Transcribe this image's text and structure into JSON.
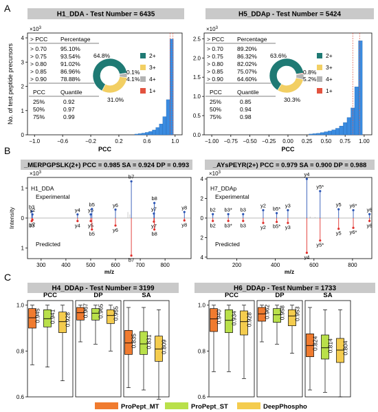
{
  "panel_labels": [
    "A",
    "B",
    "C"
  ],
  "legend": {
    "items": [
      {
        "name": "ProPept_MT",
        "color": "#f07b2f"
      },
      {
        "name": "ProPept_ST",
        "color": "#b9e04a"
      },
      {
        "name": "DeepPhospho",
        "color": "#f4cc4e"
      }
    ]
  },
  "colors": {
    "teal": "#1f7a74",
    "yellow": "#f2cf63",
    "gray": "#b3b3b3",
    "red": "#e2533f",
    "blue": "#3a8be0",
    "strip": "#c9c9c9",
    "stem_blue": "#2b55b5",
    "stem_red": "#e0302c"
  },
  "chart_data": [
    {
      "type": "bar",
      "id": "A-left",
      "title": "H1_DDA - Test Number = 6435",
      "xlabel": "PCC",
      "ylabel": "No. of test peptide precursors",
      "multiplier": "×10",
      "multiplier_exp": "3",
      "xlim": [
        -1.1,
        1.1
      ],
      "ylim": [
        0,
        4.2
      ],
      "xticks": [
        -1.0,
        -0.6,
        -0.2,
        0.2,
        0.6,
        1.0
      ],
      "xtick_labels": [
        "−1.0",
        "−0.6",
        "−0.2",
        "0.2",
        "0.6",
        "1.0"
      ],
      "yticks": [
        0,
        1,
        2,
        3,
        4
      ],
      "bins_x": [
        0.45,
        0.5,
        0.55,
        0.6,
        0.65,
        0.7,
        0.75,
        0.8,
        0.85,
        0.9,
        0.95
      ],
      "bins_h": [
        0.03,
        0.05,
        0.07,
        0.1,
        0.14,
        0.2,
        0.3,
        0.45,
        0.75,
        1.45,
        3.95
      ],
      "bin_width": 0.05,
      "vlines": [
        0.93,
        0.97
      ],
      "pct_table": {
        "headers": [
          "> PCC",
          "Percentage"
        ],
        "rows": [
          [
            "> 0.70",
            "95.10%"
          ],
          [
            "> 0.75",
            "93.54%"
          ],
          [
            "> 0.80",
            "91.02%"
          ],
          [
            "> 0.85",
            "86.96%"
          ],
          [
            "> 0.90",
            "78.88%"
          ]
        ]
      },
      "q_table": {
        "headers": [
          "PCC",
          "Quantile"
        ],
        "rows": [
          [
            "25%",
            "0.92"
          ],
          [
            "50%",
            "0.97"
          ],
          [
            "75%",
            "0.99"
          ]
        ]
      },
      "donut": {
        "values": [
          64.8,
          31.0,
          4.1,
          0.1
        ],
        "labels": [
          "64.8%",
          "31.0%",
          "4.1%",
          "0.1%"
        ],
        "names": [
          "2+",
          "3+",
          "4+",
          "1+"
        ]
      }
    },
    {
      "type": "bar",
      "id": "A-right",
      "title": "H5_DDAp - Test Number = 5424",
      "xlabel": "PCC",
      "multiplier": "×10",
      "multiplier_exp": "3",
      "xlim": [
        -1.1,
        1.1
      ],
      "ylim": [
        0,
        2.65
      ],
      "xticks": [
        -1.0,
        -0.75,
        -0.5,
        -0.25,
        0.0,
        0.25,
        0.5,
        0.75,
        1.0
      ],
      "xtick_labels": [
        "−1.00",
        "−0.75",
        "−0.50",
        "−0.25",
        "0.00",
        "0.25",
        "0.50",
        "0.75",
        "1.00"
      ],
      "yticks": [
        0.0,
        0.5,
        1.0,
        1.5,
        2.0,
        2.5
      ],
      "ytick_labels": [
        "0.0",
        "0.5",
        "1.0",
        "1.5",
        "2.0",
        "2.5"
      ],
      "bins_x": [
        0.3,
        0.35,
        0.4,
        0.45,
        0.5,
        0.55,
        0.6,
        0.65,
        0.7,
        0.75,
        0.8,
        0.85,
        0.9,
        0.95
      ],
      "bins_h": [
        0.02,
        0.03,
        0.04,
        0.06,
        0.08,
        0.1,
        0.13,
        0.17,
        0.23,
        0.32,
        0.45,
        0.7,
        1.25,
        2.45
      ],
      "bin_width": 0.05,
      "vlines": [
        0.85,
        0.94
      ],
      "pct_table": {
        "headers": [
          "> PCC",
          "Percentage"
        ],
        "rows": [
          [
            "> 0.70",
            "89.20%"
          ],
          [
            "> 0.75",
            "86.32%"
          ],
          [
            "> 0.80",
            "82.02%"
          ],
          [
            "> 0.85",
            "75.07%"
          ],
          [
            "> 0.90",
            "64.60%"
          ]
        ]
      },
      "q_table": {
        "headers": [
          "PCC",
          "Quantile"
        ],
        "rows": [
          [
            "25%",
            "0.85"
          ],
          [
            "50%",
            "0.94"
          ],
          [
            "75%",
            "0.98"
          ]
        ]
      },
      "donut": {
        "values": [
          63.6,
          30.3,
          5.2,
          0.8
        ],
        "labels": [
          "63.6%",
          "30.3%",
          "5.2%",
          "0.8%"
        ],
        "names": [
          "2+",
          "3+",
          "4+",
          "1+"
        ]
      }
    },
    {
      "type": "mirror-spectrum",
      "id": "B-left",
      "title": "_MERPGPSLK(2+)  PCC = 0.985  SA = 0.924  DP = 0.993",
      "sample": "H1_DDA",
      "top_label": "Experimental",
      "bottom_label": "Predicted",
      "xlabel": "m/z",
      "ylabel": "Intensity",
      "multiplier": "×10",
      "multiplier_exp": "3",
      "xlim": [
        245,
        905
      ],
      "ylim": [
        -1.35,
        1.35
      ],
      "xticks": [
        300,
        400,
        500,
        600,
        700,
        800
      ],
      "yticks": [
        1,
        0,
        1
      ],
      "ytick_labels": [
        "1",
        "0",
        "1"
      ],
      "peaks": [
        {
          "mz": 262,
          "top": 0.22,
          "bottom": 0.1,
          "top_label": "b3",
          "bottom_label": "b3"
        },
        {
          "mz": 265,
          "top": 0.12,
          "bottom": 0.06,
          "top_label": "y2",
          "bottom_label": "y2"
        },
        {
          "mz": 447,
          "top": 0.12,
          "bottom": 0.1,
          "top_label": "y4",
          "bottom_label": "y4"
        },
        {
          "mz": 500,
          "top": 0.12,
          "bottom": 0.1,
          "top_label": "y5",
          "bottom_label": "y5"
        },
        {
          "mz": 505,
          "top": 0.3,
          "bottom": 0.38,
          "top_label": "b5",
          "bottom_label": "b5"
        },
        {
          "mz": 600,
          "top": 0.28,
          "bottom": 0.25,
          "top_label": "y6",
          "bottom_label": "y6"
        },
        {
          "mz": 664,
          "top": 1.22,
          "bottom": 1.25,
          "top_label": "b7",
          "bottom_label": "b7"
        },
        {
          "mz": 755,
          "top": 0.15,
          "bottom": 0.12,
          "top_label": "y7",
          "bottom_label": "y7"
        },
        {
          "mz": 757,
          "top": 0.5,
          "bottom": 0.38,
          "top_label": "b8",
          "bottom_label": "b8"
        },
        {
          "mz": 878,
          "top": 0.2,
          "bottom": 0.08,
          "top_label": "y8",
          "bottom_label": "y8"
        }
      ],
      "minor_peaks": [
        {
          "mz": 650,
          "top": 0.2
        },
        {
          "mz": 658,
          "top": 0.12
        }
      ]
    },
    {
      "type": "mirror-spectrum",
      "id": "B-right",
      "title": "_AYsPEYR(2+)  PCC = 0.979  SA = 0.900  DP = 0.988",
      "sample": "H7_DDAp",
      "top_label": "Experimental",
      "bottom_label": "Predicted",
      "xlabel": "m/z",
      "multiplier": "×10",
      "multiplier_exp": "3",
      "xlim": [
        45,
        900
      ],
      "ylim": [
        -4.15,
        4.15
      ],
      "xticks": [
        200,
        400,
        600,
        800
      ],
      "yticks": [
        4,
        2,
        0,
        2,
        4
      ],
      "ytick_labels": [
        "4",
        "2",
        "0",
        "2",
        "4"
      ],
      "peaks": [
        {
          "mz": 76,
          "top": 0.4,
          "bottom": 0.3,
          "top_label": "b2",
          "bottom_label": "b2"
        },
        {
          "mz": 156,
          "top": 0.4,
          "bottom": 0.3,
          "top_label": "b3*",
          "bottom_label": "b3*"
        },
        {
          "mz": 233,
          "top": 0.4,
          "bottom": 0.3,
          "top_label": "b3",
          "bottom_label": "b3"
        },
        {
          "mz": 337,
          "top": 0.8,
          "bottom": 0.5,
          "top_label": "y2",
          "bottom_label": "y2"
        },
        {
          "mz": 407,
          "top": 0.5,
          "bottom": 0.4,
          "top_label": "b5*",
          "bottom_label": "b5*"
        },
        {
          "mz": 465,
          "top": 0.8,
          "bottom": 0.5,
          "top_label": "y3",
          "bottom_label": "y3"
        },
        {
          "mz": 563,
          "top": 4.0,
          "bottom": 3.55,
          "top_label": "y4",
          "bottom_label": "y4"
        },
        {
          "mz": 632,
          "top": 2.75,
          "bottom": 2.3,
          "top_label": "y5*",
          "bottom_label": "y5*"
        },
        {
          "mz": 728,
          "top": 0.9,
          "bottom": 1.1,
          "top_label": "y5",
          "bottom_label": "y5"
        },
        {
          "mz": 804,
          "top": 0.8,
          "bottom": 1.0,
          "top_label": "y6*",
          "bottom_label": "y6*"
        },
        {
          "mz": 888,
          "top": 0.4,
          "bottom": 0.3,
          "top_label": "y6",
          "bottom_label": "y6"
        }
      ],
      "minor_peaks": [
        {
          "mz": 580,
          "top": 0.15
        },
        {
          "mz": 605,
          "top": 0.1
        }
      ]
    },
    {
      "type": "box",
      "id": "C-left",
      "title": "H4_DDAp - Test Number = 3199",
      "ylim": [
        0.6,
        1.02
      ],
      "yticks": [
        0.6,
        0.8,
        1.0
      ],
      "ytick_labels": [
        "0.6",
        "0.8",
        "1.0"
      ],
      "facets": [
        {
          "name": "PCC",
          "boxes": [
            {
              "series": "ProPept_MT",
              "median": 0.945,
              "q1": 0.9,
              "q3": 0.985,
              "whislo": 0.74,
              "whishi": 1.0,
              "label": "0.945"
            },
            {
              "series": "ProPept_ST",
              "median": 0.941,
              "q1": 0.905,
              "q3": 0.98,
              "whislo": 0.73,
              "whishi": 1.0,
              "label": "0.941"
            },
            {
              "series": "DeepPhospho",
              "median": 0.928,
              "q1": 0.88,
              "q3": 0.97,
              "whislo": 0.67,
              "whishi": 1.0,
              "label": "0.928"
            }
          ]
        },
        {
          "name": "DP",
          "boxes": [
            {
              "series": "ProPept_MT",
              "median": 0.967,
              "q1": 0.935,
              "q3": 0.99,
              "whislo": 0.84,
              "whishi": 1.0,
              "label": "0.967"
            },
            {
              "series": "ProPept_ST",
              "median": 0.965,
              "q1": 0.935,
              "q3": 0.985,
              "whislo": 0.83,
              "whishi": 1.0,
              "label": "0.965"
            },
            {
              "series": "DeepPhospho",
              "median": 0.955,
              "q1": 0.92,
              "q3": 0.98,
              "whislo": 0.8,
              "whishi": 1.0,
              "label": "0.955"
            }
          ]
        },
        {
          "name": "SA",
          "boxes": [
            {
              "series": "ProPept_MT",
              "median": 0.835,
              "q1": 0.785,
              "q3": 0.89,
              "whislo": 0.64,
              "whishi": 0.99,
              "label": "0.835"
            },
            {
              "series": "ProPept_ST",
              "median": 0.831,
              "q1": 0.785,
              "q3": 0.885,
              "whislo": 0.63,
              "whishi": 0.99,
              "label": "0.831"
            },
            {
              "series": "DeepPhospho",
              "median": 0.809,
              "q1": 0.755,
              "q3": 0.865,
              "whislo": 0.59,
              "whishi": 0.98,
              "label": "0.809"
            }
          ]
        }
      ]
    },
    {
      "type": "box",
      "id": "C-right",
      "title": "H6_DDAp - Test Number = 1733",
      "ylim": [
        0.6,
        1.02
      ],
      "yticks": [
        0.6,
        0.8,
        1.0
      ],
      "ytick_labels": [
        "0.6",
        "0.8",
        "1.0"
      ],
      "facets": [
        {
          "name": "PCC",
          "boxes": [
            {
              "series": "ProPept_MT",
              "median": 0.94,
              "q1": 0.885,
              "q3": 0.985,
              "whislo": 0.71,
              "whishi": 1.0,
              "label": "0.940"
            },
            {
              "series": "ProPept_ST",
              "median": 0.934,
              "q1": 0.88,
              "q3": 0.98,
              "whislo": 0.71,
              "whishi": 1.0,
              "label": "0.934"
            },
            {
              "series": "DeepPhospho",
              "median": 0.928,
              "q1": 0.87,
              "q3": 0.975,
              "whislo": 0.68,
              "whishi": 1.0,
              "label": "0.928"
            }
          ]
        },
        {
          "name": "DP",
          "boxes": [
            {
              "series": "ProPept_MT",
              "median": 0.962,
              "q1": 0.93,
              "q3": 0.99,
              "whislo": 0.84,
              "whishi": 1.0,
              "label": "0.962"
            },
            {
              "series": "ProPept_ST",
              "median": 0.958,
              "q1": 0.925,
              "q3": 0.985,
              "whislo": 0.83,
              "whishi": 1.0,
              "label": "0.958"
            },
            {
              "series": "DeepPhospho",
              "median": 0.953,
              "q1": 0.91,
              "q3": 0.98,
              "whislo": 0.79,
              "whishi": 1.0,
              "label": "0.953"
            }
          ]
        },
        {
          "name": "SA",
          "boxes": [
            {
              "series": "ProPept_MT",
              "median": 0.824,
              "q1": 0.775,
              "q3": 0.875,
              "whislo": 0.63,
              "whishi": 0.99,
              "label": "0.824"
            },
            {
              "series": "ProPept_ST",
              "median": 0.814,
              "q1": 0.765,
              "q3": 0.87,
              "whislo": 0.62,
              "whishi": 0.98,
              "label": "0.814"
            },
            {
              "series": "DeepPhospho",
              "median": 0.804,
              "q1": 0.75,
              "q3": 0.855,
              "whislo": 0.6,
              "whishi": 0.98,
              "label": "0.804"
            }
          ]
        }
      ]
    }
  ]
}
